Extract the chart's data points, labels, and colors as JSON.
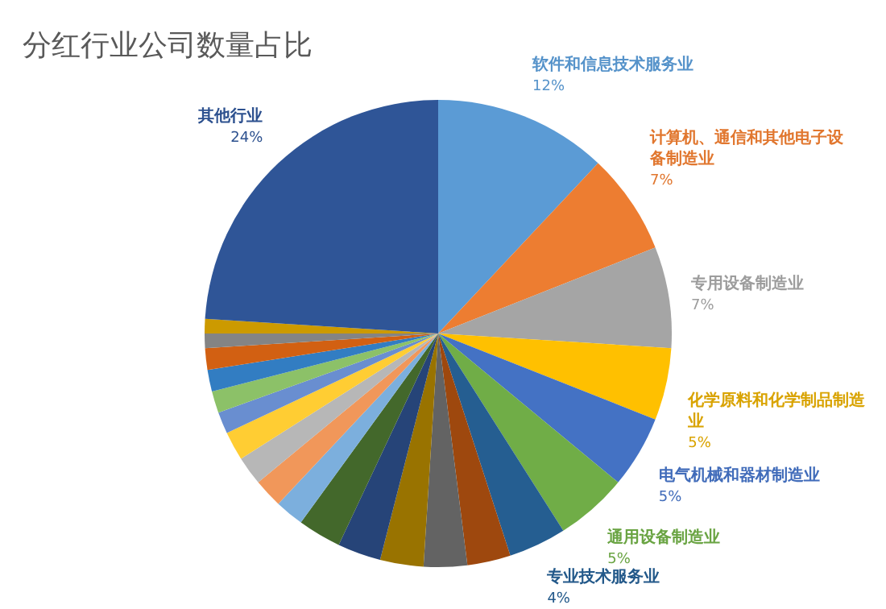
{
  "chart_data": {
    "type": "pie",
    "title": "分红行业公司数量占比",
    "categories": [
      "软件和信息技术服务业",
      "计算机、通信和其他电子设备制造业",
      "专用设备制造业",
      "化学原料和化学制品制造业",
      "电气机械和器材制造业",
      "通用设备制造业",
      "专业技术服务业",
      null,
      null,
      null,
      null,
      null,
      null,
      null,
      null,
      null,
      null,
      null,
      null,
      null,
      null,
      null,
      "其他行业"
    ],
    "values": [
      12,
      7,
      7,
      5,
      5,
      5,
      4,
      3,
      3,
      3,
      3,
      3,
      2,
      2,
      2,
      2,
      1.5,
      1.5,
      1.5,
      1.5,
      1,
      1,
      24
    ],
    "value_labels": [
      "12%",
      "7%",
      "7%",
      "5%",
      "5%",
      "5%",
      "4%",
      null,
      null,
      null,
      null,
      null,
      null,
      null,
      null,
      null,
      null,
      null,
      null,
      null,
      null,
      null,
      "24%"
    ],
    "colors": [
      "#5b9bd5",
      "#ed7d31",
      "#a5a5a5",
      "#ffc000",
      "#4472c4",
      "#70ad47",
      "#255e91",
      "#9e480e",
      "#636363",
      "#997300",
      "#264478",
      "#43682b",
      "#7cafdd",
      "#f1975a",
      "#b7b7b7",
      "#ffcd33",
      "#698ed0",
      "#8cc168",
      "#327dc2",
      "#d26012",
      "#848484",
      "#cc9a00",
      "#2f5597"
    ]
  }
}
